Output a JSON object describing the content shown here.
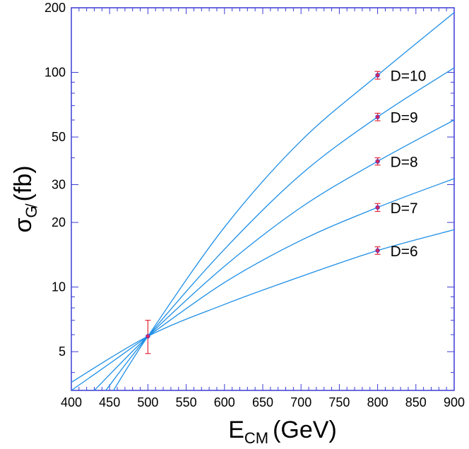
{
  "chart_data": {
    "type": "line",
    "x_scale": "linear",
    "y_scale": "log",
    "xlim": [
      400,
      900
    ],
    "ylim": [
      3.3,
      200
    ],
    "grid": false,
    "xlabel_main": "E",
    "xlabel_sub": "CM",
    "xlabel_unit": "(GeV)",
    "ylabel_main": "σ",
    "ylabel_sub": "G̸",
    "ylabel_unit": "(fb)",
    "x_ticks": [
      "400",
      "450",
      "500",
      "550",
      "600",
      "650",
      "700",
      "750",
      "800",
      "850",
      "900"
    ],
    "y_ticks": [
      {
        "value": 5,
        "label": "5"
      },
      {
        "value": 10,
        "label": "10"
      },
      {
        "value": 20,
        "label": "20"
      },
      {
        "value": 30,
        "label": "30"
      },
      {
        "value": 50,
        "label": "50"
      },
      {
        "value": 100,
        "label": "100"
      },
      {
        "value": 200,
        "label": "200"
      }
    ],
    "series": [
      {
        "name": "D=6",
        "x": [
          400,
          500,
          600,
          700,
          800,
          900
        ],
        "y": [
          3.6,
          5.9,
          8.3,
          11.2,
          14.8,
          18.5
        ]
      },
      {
        "name": "D=7",
        "x": [
          400,
          450,
          500,
          600,
          700,
          800,
          900
        ],
        "y": [
          3.3,
          4.4,
          5.9,
          10.5,
          16.5,
          23.5,
          32
        ]
      },
      {
        "name": "D=8",
        "x": [
          430,
          500,
          600,
          700,
          800,
          900
        ],
        "y": [
          3.3,
          5.9,
          12.5,
          23.5,
          38.5,
          60
        ]
      },
      {
        "name": "D=9",
        "x": [
          445,
          500,
          600,
          700,
          800,
          900
        ],
        "y": [
          3.3,
          5.9,
          15,
          33.5,
          62,
          105
        ]
      },
      {
        "name": "D=10",
        "x": [
          455,
          500,
          600,
          700,
          800,
          900
        ],
        "y": [
          3.3,
          5.9,
          19,
          48,
          97,
          190
        ]
      }
    ],
    "error_points": [
      {
        "x": 500,
        "y": 5.9,
        "y_low": 4.9,
        "y_high": 7.0
      },
      {
        "x": 800,
        "y": 97,
        "y_low": 93,
        "y_high": 101
      },
      {
        "x": 800,
        "y": 62,
        "y_low": 59.5,
        "y_high": 64.5
      },
      {
        "x": 800,
        "y": 38.5,
        "y_low": 37,
        "y_high": 40
      },
      {
        "x": 800,
        "y": 23.5,
        "y_low": 22.5,
        "y_high": 24.5
      },
      {
        "x": 800,
        "y": 14.8,
        "y_low": 14.2,
        "y_high": 15.4
      }
    ],
    "colors": {
      "line": "#1e8fe6",
      "frame": "#3b3bd6",
      "error": "#e02a3a",
      "marker_fill": "#d8285a",
      "marker_edge": "#3b3bd6"
    }
  }
}
